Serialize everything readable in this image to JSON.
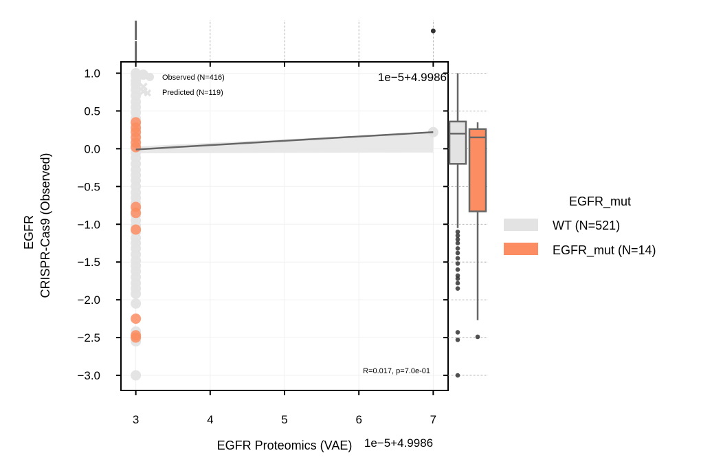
{
  "chart_data": {
    "type": "scatter",
    "x_label": "EGFR Proteomics (VAE)",
    "y_label_line1": "EGFR",
    "y_label_line2": "CRISPR-Cas9 (Observed)",
    "x_offset_text": "1e−5+4.9986",
    "x_offset_text_bottom": "1e−5+4.9986",
    "x_ticks": [
      3,
      4,
      5,
      6,
      7
    ],
    "x_tick_labels": [
      "3",
      "4",
      "5",
      "6",
      "7"
    ],
    "y_ticks": [
      1.0,
      0.5,
      0.0,
      -0.5,
      -1.0,
      -1.5,
      -2.0,
      -2.5,
      -3.0
    ],
    "y_tick_labels": [
      "1.0",
      "0.5",
      "0.0",
      "−0.5",
      "−1.0",
      "−1.5",
      "−2.0",
      "−2.5",
      "−3.0"
    ],
    "xlim": [
      2.8,
      7.2
    ],
    "ylim": [
      -3.2,
      1.15
    ],
    "marker_legend": [
      "Observed (N=416)",
      "Predicted (N=119)"
    ],
    "stats_text": "R=0.017, p=7.0e-01",
    "hue_title": "EGFR_mut",
    "hue_labels": [
      "WT (N=521)",
      "EGFR_mut (N=14)"
    ],
    "colors": {
      "wt": "#e3e3e3",
      "mut": "#fc8d62",
      "line": "#666666",
      "outlier": "#333333"
    },
    "wt_points": {
      "x": 3,
      "y": [
        1.0,
        0.97,
        0.9,
        0.85,
        0.78,
        0.7,
        0.62,
        0.55,
        0.48,
        0.4,
        0.33,
        0.25,
        0.18,
        0.1,
        0.03,
        -0.05,
        -0.12,
        -0.2,
        -0.28,
        -0.35,
        -0.42,
        -0.5,
        -0.58,
        -0.65,
        -0.72,
        -0.8,
        -0.88,
        -0.95,
        -1.02,
        -1.1,
        -1.18,
        -1.25,
        -1.32,
        -1.4,
        -1.48,
        -1.55,
        -1.62,
        -1.7,
        -1.78,
        -1.85,
        -1.92,
        -2.05,
        -2.42,
        -2.5,
        -2.55,
        -3.0
      ]
    },
    "wt_extra_points": [
      {
        "x": 3.1,
        "y": 0.98
      },
      {
        "x": 7.0,
        "y": 0.22
      }
    ],
    "predicted_points": {
      "x": 3.1,
      "y": [
        0.82,
        0.76
      ]
    },
    "mut_points": {
      "x": 3,
      "y": [
        0.35,
        0.28,
        0.22,
        0.15,
        0.08,
        0.02,
        -0.77,
        -0.85,
        -1.07,
        -2.25,
        -2.47,
        -2.5
      ]
    },
    "regression": {
      "x": [
        3,
        7
      ],
      "y": [
        -0.01,
        0.22
      ]
    },
    "top_marginal": {
      "outlier_x": 7.0,
      "median_x": 3.0
    },
    "box_wt": {
      "q1": -0.2,
      "median": 0.2,
      "q3": 0.36,
      "whisker_low": -1.05,
      "whisker_high": 1.0,
      "outliers": [
        -1.1,
        -1.15,
        -1.2,
        -1.25,
        -1.32,
        -1.38,
        -1.45,
        -1.52,
        -1.6,
        -1.68,
        -1.72,
        -1.78,
        -1.85,
        -2.43,
        -2.53,
        -3.0
      ]
    },
    "box_mut": {
      "q1": -0.83,
      "median": 0.15,
      "q3": 0.26,
      "whisker_low": -2.27,
      "whisker_high": 0.35,
      "outliers": [
        -2.49
      ]
    }
  }
}
